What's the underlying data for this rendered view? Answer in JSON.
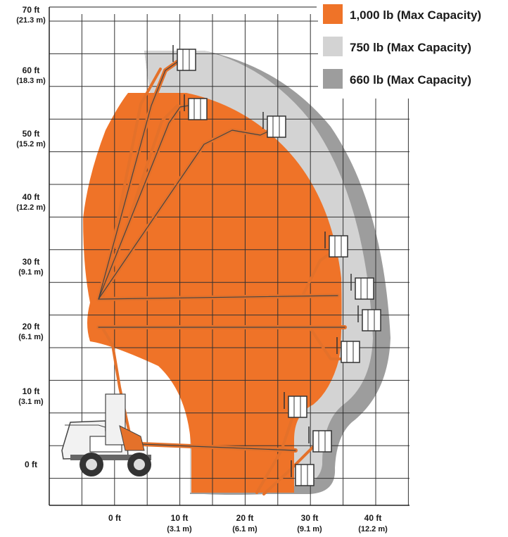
{
  "colors": {
    "capacity_1000": "#ef7328",
    "capacity_750": "#d3d3d3",
    "capacity_660": "#9d9d9d",
    "grid": "#333333",
    "machine": "#e4712a",
    "machine_dark": "#444444"
  },
  "legend": [
    {
      "label": "1,000 lb (Max Capacity)",
      "color": "#ef7328"
    },
    {
      "label": "750 lb (Max Capacity)",
      "color": "#d3d3d3"
    },
    {
      "label": "660 lb (Max Capacity)",
      "color": "#9d9d9d"
    }
  ],
  "y_axis": [
    {
      "ft": "70 ft",
      "m": "(21.3 m)"
    },
    {
      "ft": "60 ft",
      "m": "(18.3 m)"
    },
    {
      "ft": "50 ft",
      "m": "(15.2 m)"
    },
    {
      "ft": "40 ft",
      "m": "(12.2 m)"
    },
    {
      "ft": "30 ft",
      "m": "(9.1 m)"
    },
    {
      "ft": "20 ft",
      "m": "(6.1 m)"
    },
    {
      "ft": "10 ft",
      "m": "(3.1 m)"
    },
    {
      "ft": "0 ft",
      "m": ""
    }
  ],
  "x_axis": [
    {
      "ft": "0 ft",
      "m": ""
    },
    {
      "ft": "10 ft",
      "m": "(3.1 m)"
    },
    {
      "ft": "20 ft",
      "m": "(6.1 m)"
    },
    {
      "ft": "30 ft",
      "m": "(9.1 m)"
    },
    {
      "ft": "40 ft",
      "m": "(12.2 m)"
    }
  ],
  "icons": {
    "machine": "articulating-boom-lift-icon",
    "platform": "work-platform-basket-icon"
  }
}
